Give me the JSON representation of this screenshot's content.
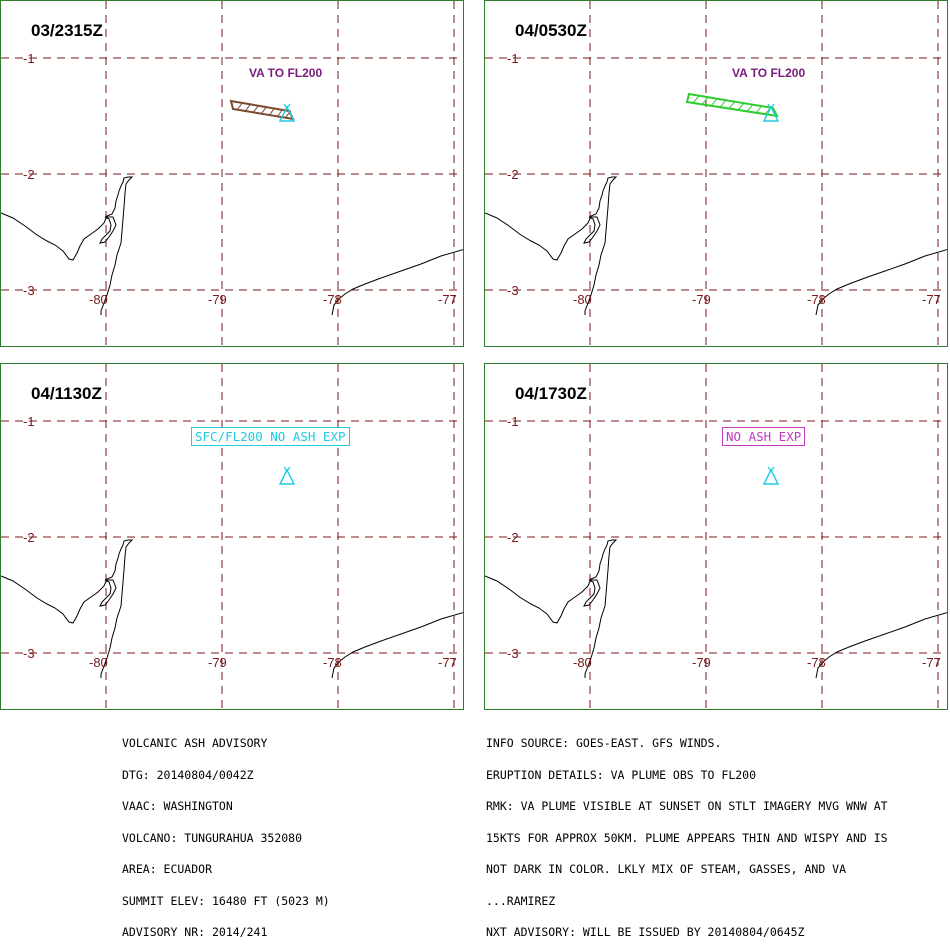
{
  "panels": [
    {
      "time": "03/2315Z",
      "label": "VA TO FL200",
      "label_type": "plain",
      "label_color": "#7a1a7a",
      "plume": "brown"
    },
    {
      "time": "04/0530Z",
      "label": "VA TO FL200",
      "label_type": "plain",
      "label_color": "#7a1a7a",
      "plume": "green"
    },
    {
      "time": "04/1130Z",
      "label": "SFC/FL200 NO ASH EXP",
      "label_type": "boxed",
      "label_color": "#1ecbe0",
      "plume": "none"
    },
    {
      "time": "04/1730Z",
      "label": "NO ASH EXP",
      "label_type": "boxed",
      "label_color": "#c03ac0",
      "plume": "none"
    }
  ],
  "lat_labels": [
    "-1",
    "-2",
    "-3"
  ],
  "lon_labels": [
    "-80",
    "-79",
    "-78",
    "-77"
  ],
  "colors": {
    "grid": "#7a1a1a",
    "border": "#2e7d2e",
    "volcano": "#1ecbe0",
    "brown_plume": "#7a4a30",
    "green_plume": "#2ecc2e"
  },
  "volcano_icon": "volcano-triangle-icon",
  "advisory_left": [
    "VOLCANIC ASH ADVISORY",
    "DTG: 20140804/0042Z",
    "VAAC: WASHINGTON",
    "VOLCANO: TUNGURAHUA 352080",
    "AREA: ECUADOR",
    "SUMMIT ELEV: 16480 FT (5023 M)",
    "ADVISORY NR: 2014/241"
  ],
  "advisory_right": [
    "INFO SOURCE: GOES-EAST. GFS WINDS.",
    "ERUPTION DETAILS: VA PLUME OBS TO FL200",
    "RMK: VA PLUME VISIBLE AT SUNSET ON STLT IMAGERY MVG WNW AT",
    "15KTS FOR APPROX 50KM. PLUME APPEARS THIN AND WISPY AND IS",
    "NOT DARK IN COLOR. LKLY MIX OF STEAM, GASSES, AND VA",
    "...RAMIREZ",
    "NXT ADVISORY: WILL BE ISSUED BY 20140804/0645Z"
  ]
}
